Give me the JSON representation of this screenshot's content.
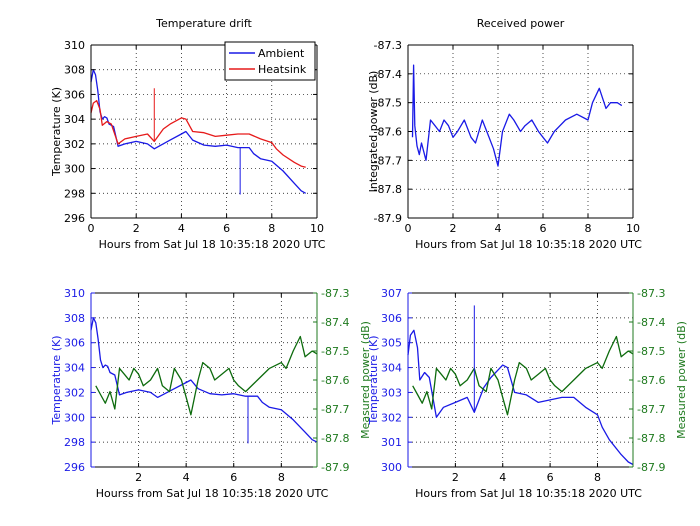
{
  "colors": {
    "ambient": "#1a1ae6",
    "heatsink": "#e61a1a",
    "power": "#1f7a1f",
    "power_line": "#0d6b0d",
    "axis": "#000000"
  },
  "chart_data": [
    {
      "type": "line",
      "title": "Temperature drift",
      "xlabel": "Hours from Sat Jul 18 10:35:18 2020   UTC",
      "ylabel": "Temperature (K)",
      "xlim": [
        0,
        10
      ],
      "ylim": [
        296,
        310
      ],
      "xticks": [
        "0",
        "2",
        "4",
        "6",
        "8",
        "10"
      ],
      "yticks": [
        "296",
        "298",
        "300",
        "302",
        "304",
        "306",
        "308",
        "310"
      ],
      "grid": true,
      "legend": {
        "position": "top-right",
        "entries": [
          "Ambient",
          "Heatsink"
        ]
      },
      "series": [
        {
          "name": "Ambient",
          "color": "#1a1ae6",
          "x": [
            0,
            0.1,
            0.2,
            0.3,
            0.4,
            0.5,
            0.6,
            0.7,
            0.8,
            1.0,
            1.2,
            1.5,
            2.0,
            2.5,
            2.8,
            3.0,
            3.5,
            4.0,
            4.2,
            4.5,
            5.0,
            5.5,
            6.0,
            6.5,
            7.0,
            7.2,
            7.5,
            8.0,
            8.5,
            9.0,
            9.3,
            9.5
          ],
          "y": [
            307.0,
            308.0,
            307.6,
            306.3,
            304.6,
            304.0,
            304.2,
            304.1,
            303.6,
            303.4,
            301.8,
            302.0,
            302.2,
            302.0,
            301.6,
            301.8,
            302.3,
            302.8,
            303.0,
            302.3,
            301.9,
            301.8,
            301.9,
            301.7,
            301.7,
            301.2,
            300.8,
            300.6,
            299.8,
            298.8,
            298.2,
            298.0
          ]
        },
        {
          "name": "Heatsink",
          "color": "#e61a1a",
          "x": [
            0,
            0.1,
            0.25,
            0.4,
            0.5,
            0.7,
            0.9,
            1.2,
            1.5,
            2.0,
            2.5,
            2.8,
            3.2,
            3.5,
            4.0,
            4.2,
            4.5,
            5.0,
            5.5,
            6.0,
            6.5,
            7.0,
            7.5,
            8.0,
            8.2,
            8.5,
            9.0,
            9.3,
            9.5
          ],
          "y": [
            304.5,
            305.3,
            305.5,
            304.8,
            303.5,
            303.8,
            303.6,
            302.0,
            302.4,
            302.6,
            302.8,
            302.2,
            303.2,
            303.6,
            304.1,
            304.0,
            303.0,
            302.9,
            302.6,
            302.7,
            302.8,
            302.8,
            302.4,
            302.1,
            301.6,
            301.1,
            300.5,
            300.2,
            300.1
          ]
        }
      ],
      "spikes": [
        {
          "series": "Heatsink",
          "x": 2.8,
          "y": 306.5
        },
        {
          "series": "Ambient",
          "x": 6.6,
          "y": 297.9
        }
      ]
    },
    {
      "type": "line",
      "title": "Received power",
      "xlabel": "Hours from Sat Jul 18 10:35:18 2020   UTC",
      "ylabel": "Integrated power (dB)",
      "xlim": [
        0,
        10
      ],
      "ylim": [
        -87.9,
        -87.3
      ],
      "xticks": [
        "0",
        "2",
        "4",
        "6",
        "8",
        "10"
      ],
      "yticks": [
        "-87.3",
        "-87.4",
        "-87.5",
        "-87.6",
        "-87.7",
        "-87.8",
        "-87.9"
      ],
      "grid": true,
      "series": [
        {
          "color": "#1a1ae6",
          "x": [
            0.2,
            0.25,
            0.3,
            0.4,
            0.5,
            0.6,
            0.8,
            1.0,
            1.2,
            1.4,
            1.6,
            1.8,
            2.0,
            2.2,
            2.5,
            2.8,
            3.0,
            3.3,
            3.5,
            3.8,
            4.0,
            4.2,
            4.5,
            4.7,
            5.0,
            5.2,
            5.5,
            5.8,
            6.0,
            6.2,
            6.5,
            7.0,
            7.5,
            8.0,
            8.2,
            8.5,
            8.8,
            9.0,
            9.3,
            9.5
          ],
          "y": [
            -87.62,
            -87.37,
            -87.58,
            -87.65,
            -87.68,
            -87.64,
            -87.7,
            -87.56,
            -87.58,
            -87.6,
            -87.56,
            -87.58,
            -87.62,
            -87.6,
            -87.56,
            -87.62,
            -87.64,
            -87.56,
            -87.6,
            -87.66,
            -87.72,
            -87.6,
            -87.54,
            -87.56,
            -87.6,
            -87.58,
            -87.56,
            -87.6,
            -87.62,
            -87.64,
            -87.6,
            -87.56,
            -87.54,
            -87.56,
            -87.5,
            -87.45,
            -87.52,
            -87.5,
            -87.5,
            -87.51
          ]
        }
      ]
    },
    {
      "type": "line",
      "xlabel": "Hourss from Sat Jul 18 10:35:18 2020   UTC",
      "ylabel": "Temperature (K)",
      "ylabel_right": "Measured power (dB)",
      "xlim": [
        0,
        9.5
      ],
      "ylim": [
        296,
        310
      ],
      "ylim_right": [
        -87.9,
        -87.3
      ],
      "xticks": [
        "2",
        "4",
        "6",
        "8"
      ],
      "yticks": [
        "296",
        "298",
        "300",
        "302",
        "304",
        "306",
        "308",
        "310"
      ],
      "yticks_right": [
        "-87.3",
        "-87.4",
        "-87.5",
        "-87.6",
        "-87.7",
        "-87.8",
        "-87.9"
      ],
      "grid": true,
      "series": [
        {
          "color": "#1a1ae6",
          "axis": "left",
          "x": [
            0,
            0.1,
            0.2,
            0.3,
            0.4,
            0.5,
            0.6,
            0.7,
            0.8,
            1.0,
            1.2,
            1.5,
            2.0,
            2.5,
            2.8,
            3.0,
            3.5,
            4.0,
            4.2,
            4.5,
            5.0,
            5.5,
            6.0,
            6.5,
            7.0,
            7.2,
            7.5,
            8.0,
            8.5,
            9.0,
            9.3,
            9.5
          ],
          "y": [
            307.0,
            308.0,
            307.6,
            306.3,
            304.6,
            304.0,
            304.2,
            304.1,
            303.6,
            303.4,
            301.8,
            302.0,
            302.2,
            302.0,
            301.6,
            301.8,
            302.3,
            302.8,
            303.0,
            302.3,
            301.9,
            301.8,
            301.9,
            301.7,
            301.7,
            301.2,
            300.8,
            300.6,
            299.8,
            298.8,
            298.2,
            298.0
          ]
        },
        {
          "color": "#0d6b0d",
          "axis": "right",
          "x": [
            0.2,
            0.4,
            0.6,
            0.8,
            1.0,
            1.2,
            1.4,
            1.6,
            1.8,
            2.0,
            2.2,
            2.5,
            2.8,
            3.0,
            3.3,
            3.5,
            3.8,
            4.0,
            4.2,
            4.5,
            4.7,
            5.0,
            5.2,
            5.5,
            5.8,
            6.0,
            6.2,
            6.5,
            7.0,
            7.5,
            8.0,
            8.2,
            8.5,
            8.8,
            9.0,
            9.3,
            9.5
          ],
          "y": [
            -87.62,
            -87.65,
            -87.68,
            -87.64,
            -87.7,
            -87.56,
            -87.58,
            -87.6,
            -87.56,
            -87.58,
            -87.62,
            -87.6,
            -87.56,
            -87.62,
            -87.64,
            -87.56,
            -87.6,
            -87.66,
            -87.72,
            -87.6,
            -87.54,
            -87.56,
            -87.6,
            -87.58,
            -87.56,
            -87.6,
            -87.62,
            -87.64,
            -87.6,
            -87.56,
            -87.54,
            -87.56,
            -87.5,
            -87.45,
            -87.52,
            -87.5,
            -87.51
          ]
        }
      ],
      "spikes": [
        {
          "series_index": 0,
          "x": 6.6,
          "y": 297.9
        }
      ]
    },
    {
      "type": "line",
      "xlabel": "Hours from Sat Jul 18 10:35:18 2020   UTC",
      "ylabel": "Temperature (K)",
      "ylabel_right": "Measured power (dB)",
      "xlim": [
        0,
        9.5
      ],
      "ylim": [
        300,
        307
      ],
      "ylim_right": [
        -87.9,
        -87.3
      ],
      "xticks": [
        "2",
        "4",
        "6",
        "8"
      ],
      "yticks": [
        "300",
        "301",
        "302",
        "303",
        "304",
        "305",
        "306",
        "307"
      ],
      "yticks_right": [
        "-87.3",
        "-87.4",
        "-87.5",
        "-87.6",
        "-87.7",
        "-87.8",
        "-87.9"
      ],
      "grid": true,
      "series": [
        {
          "color": "#1a1ae6",
          "axis": "left",
          "x": [
            0,
            0.1,
            0.25,
            0.4,
            0.5,
            0.7,
            0.9,
            1.2,
            1.5,
            2.0,
            2.5,
            2.8,
            3.2,
            3.5,
            4.0,
            4.2,
            4.5,
            5.0,
            5.5,
            6.0,
            6.5,
            7.0,
            7.5,
            8.0,
            8.2,
            8.5,
            9.0,
            9.3,
            9.5
          ],
          "y": [
            304.5,
            305.3,
            305.5,
            304.8,
            303.5,
            303.8,
            303.6,
            302.0,
            302.4,
            302.6,
            302.8,
            302.2,
            303.2,
            303.6,
            304.1,
            304.0,
            303.0,
            302.9,
            302.6,
            302.7,
            302.8,
            302.8,
            302.4,
            302.1,
            301.6,
            301.1,
            300.5,
            300.2,
            300.1
          ]
        },
        {
          "color": "#0d6b0d",
          "axis": "right",
          "x": [
            0.2,
            0.4,
            0.6,
            0.8,
            1.0,
            1.2,
            1.4,
            1.6,
            1.8,
            2.0,
            2.2,
            2.5,
            2.8,
            3.0,
            3.3,
            3.5,
            3.8,
            4.0,
            4.2,
            4.5,
            4.7,
            5.0,
            5.2,
            5.5,
            5.8,
            6.0,
            6.2,
            6.5,
            7.0,
            7.5,
            8.0,
            8.2,
            8.5,
            8.8,
            9.0,
            9.3,
            9.5
          ],
          "y": [
            -87.62,
            -87.65,
            -87.68,
            -87.64,
            -87.7,
            -87.56,
            -87.58,
            -87.6,
            -87.56,
            -87.58,
            -87.62,
            -87.6,
            -87.56,
            -87.62,
            -87.64,
            -87.56,
            -87.6,
            -87.66,
            -87.72,
            -87.6,
            -87.54,
            -87.56,
            -87.6,
            -87.58,
            -87.56,
            -87.6,
            -87.62,
            -87.64,
            -87.6,
            -87.56,
            -87.54,
            -87.56,
            -87.5,
            -87.45,
            -87.52,
            -87.5,
            -87.51
          ]
        }
      ],
      "spikes": [
        {
          "series_index": 0,
          "x": 2.8,
          "y": 306.5
        }
      ]
    }
  ]
}
